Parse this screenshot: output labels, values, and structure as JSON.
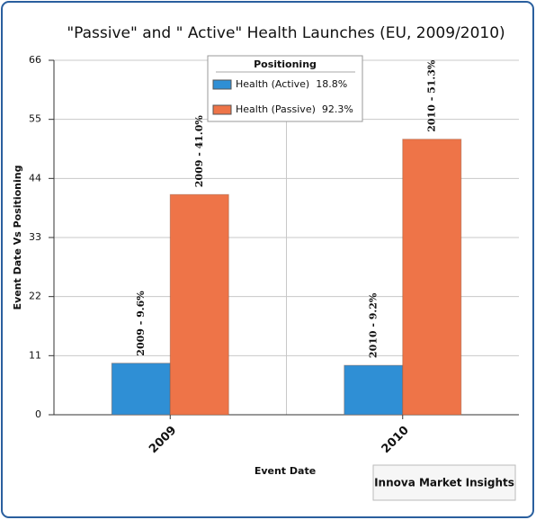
{
  "chart_data": {
    "type": "bar",
    "title": "\"Passive\" and \" Active\" Health Launches (EU, 2009/2010)",
    "y_label": "Event Date  Vs  Positioning",
    "x_label": "Event Date",
    "watermark": "Innova Market Insights",
    "legend_title": "Positioning",
    "categories": [
      "2009",
      "2010"
    ],
    "series": [
      {
        "name": "Health (Active)  18.8%",
        "color": "#2f8fd5",
        "values": [
          9.6,
          9.2
        ],
        "value_labels": [
          "2009 -  9.6%",
          "2010 -  9.2%"
        ]
      },
      {
        "name": "Health (Passive)  92.3%",
        "color": "#ee7448",
        "values": [
          41.0,
          51.3
        ],
        "value_labels": [
          "2009 -  41.0%",
          "2010 -  51.3%"
        ]
      }
    ],
    "ylim": [
      0,
      66
    ],
    "yticks": [
      0,
      11,
      22,
      33,
      44,
      55,
      66
    ],
    "grid": true
  }
}
